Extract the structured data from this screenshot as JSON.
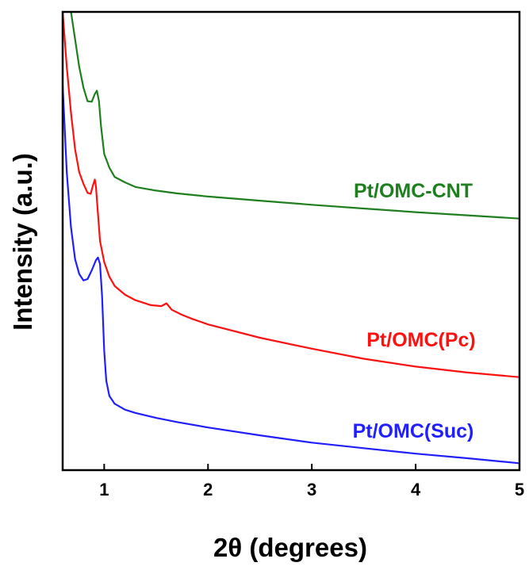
{
  "chart_data": {
    "type": "line",
    "title": "",
    "xlabel": "2θ (degrees)",
    "ylabel": "Intensity (a.u.)",
    "xlim": [
      0.6,
      5
    ],
    "ylim": [
      0,
      100
    ],
    "xticks": [
      1,
      2,
      3,
      4,
      5
    ],
    "yticks": [],
    "grid": false,
    "legend": "none",
    "series": [
      {
        "name": "Pt/OMC-CNT",
        "color": "#1f7f1f",
        "x": [
          0.68,
          0.72,
          0.76,
          0.8,
          0.84,
          0.88,
          0.91,
          0.93,
          0.95,
          0.97,
          1.0,
          1.05,
          1.1,
          1.2,
          1.3,
          1.5,
          1.7,
          2.0,
          2.5,
          3.0,
          3.5,
          4.0,
          4.5,
          5.0
        ],
        "values": [
          100,
          94,
          88,
          83.5,
          80.5,
          80.4,
          82.1,
          82.8,
          80.5,
          75,
          69,
          66,
          64,
          62.8,
          61.8,
          61.0,
          60.4,
          59.7,
          58.8,
          57.9,
          57.1,
          56.3,
          55.6,
          54.9
        ]
      },
      {
        "name": "Pt/OMC(Pc)",
        "color": "#ff1010",
        "x": [
          0.6,
          0.64,
          0.68,
          0.72,
          0.76,
          0.8,
          0.84,
          0.87,
          0.89,
          0.91,
          0.92,
          0.94,
          0.96,
          1.0,
          1.05,
          1.1,
          1.2,
          1.3,
          1.45,
          1.55,
          1.6,
          1.65,
          1.75,
          1.85,
          2.0,
          2.5,
          3.0,
          3.5,
          4.0,
          4.5,
          5.0
        ],
        "values": [
          100,
          88,
          78,
          70,
          65,
          62.5,
          60.5,
          60.3,
          62,
          63.4,
          62,
          56,
          50,
          45.4,
          42.2,
          40.2,
          38.3,
          37.1,
          36.0,
          35.8,
          36.4,
          35.0,
          33.9,
          33.0,
          31.8,
          28.9,
          26.5,
          24.3,
          22.6,
          21.3,
          20.3
        ]
      },
      {
        "name": "Pt/OMC(Suc)",
        "color": "#1f1fff",
        "x": [
          0.6,
          0.64,
          0.68,
          0.72,
          0.76,
          0.8,
          0.84,
          0.88,
          0.92,
          0.94,
          0.96,
          0.98,
          1.0,
          1.02,
          1.05,
          1.1,
          1.2,
          1.3,
          1.5,
          1.7,
          2.0,
          2.5,
          3.0,
          3.5,
          4.0,
          4.5,
          5.0
        ],
        "values": [
          84,
          65,
          53,
          46,
          42.8,
          41.4,
          41.7,
          43.6,
          45.8,
          46.4,
          45,
          38,
          26,
          19.5,
          16.2,
          14.5,
          13.2,
          12.5,
          11.4,
          10.5,
          9.3,
          7.6,
          6.0,
          4.8,
          3.6,
          2.6,
          1.5
        ]
      }
    ],
    "annotations": [
      {
        "text": "Pt/OMC-CNT",
        "color": "#1f7f1f"
      },
      {
        "text": "Pt/OMC(Pc)",
        "color": "#ff1010"
      },
      {
        "text": "Pt/OMC(Suc)",
        "color": "#1f1fff"
      }
    ]
  }
}
